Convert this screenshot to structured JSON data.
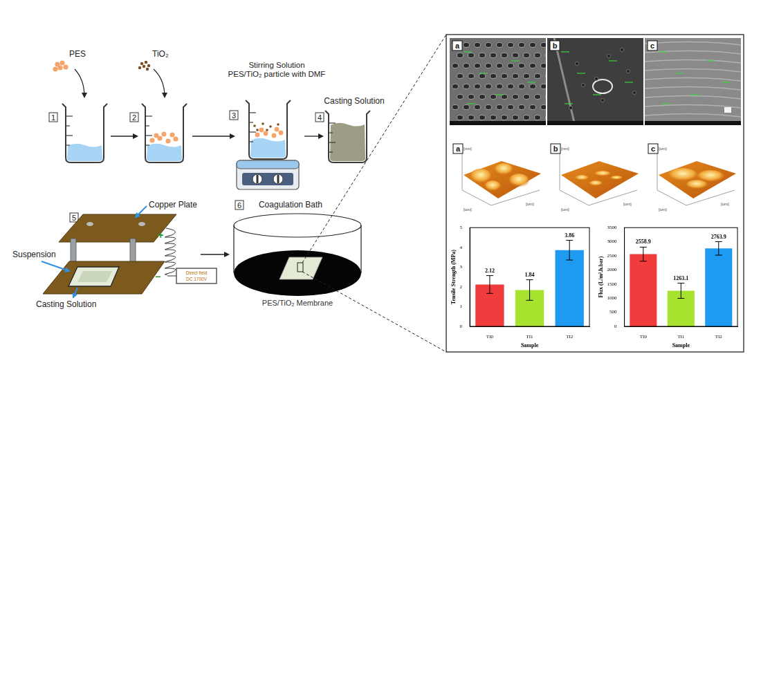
{
  "diagram": {
    "steps": [
      {
        "number": "1",
        "label": "PES"
      },
      {
        "number": "2",
        "label": "TiO₂"
      },
      {
        "number": "3",
        "label": [
          "Stirring Solution",
          "PES/TiO₂ particle with DMF"
        ]
      },
      {
        "number": "4",
        "label": "Casting Solution"
      },
      {
        "number": "5",
        "labels": {
          "plate": "Copper Plate",
          "suspension": "Suspension",
          "casting": "Casting Solution",
          "power_supply": [
            "Direct field",
            "DC 1700V"
          ],
          "positive": "+",
          "negative": "−"
        }
      },
      {
        "number": "6",
        "labels": {
          "bath": "Coagulation Bath",
          "membrane": "PES/TiO₂ Membrane"
        }
      }
    ],
    "sem_panels": [
      "a",
      "b",
      "c"
    ],
    "afm_panels": [
      {
        "label": "a",
        "z_unit": "[nm]",
        "xy_unit": "[um]"
      },
      {
        "label": "b",
        "z_unit": "[nm]",
        "xy_unit": "[um]"
      },
      {
        "label": "c",
        "z_unit": "[um]",
        "xy_unit": "[um]"
      }
    ]
  },
  "chart_data": [
    {
      "type": "bar",
      "y_label": "Tensile Strength (MPa)",
      "x_label": "Sample",
      "categories": [
        "TI0",
        "TI1",
        "TI2"
      ],
      "values": [
        2.12,
        1.84,
        3.86
      ],
      "errors": [
        0.45,
        0.52,
        0.5
      ],
      "colors": [
        "#f03c3c",
        "#a6e22e",
        "#1e9bf0"
      ],
      "ylim": [
        0,
        5
      ],
      "yticks": [
        0,
        1,
        2,
        3,
        4,
        5
      ],
      "grid": false,
      "data_labels": true
    },
    {
      "type": "bar",
      "y_label": "Flux (L/m².h.bar)",
      "x_label": "Sample",
      "categories": [
        "TI0",
        "TI1",
        "TI2"
      ],
      "values": [
        2558.9,
        1263.1,
        2763.9
      ],
      "errors": [
        250,
        270,
        240
      ],
      "colors": [
        "#f03c3c",
        "#a6e22e",
        "#1e9bf0"
      ],
      "ylim": [
        0,
        3500
      ],
      "yticks": [
        0,
        500,
        1000,
        1500,
        2000,
        2500,
        3000,
        3500
      ],
      "grid": false,
      "data_labels": true
    }
  ]
}
